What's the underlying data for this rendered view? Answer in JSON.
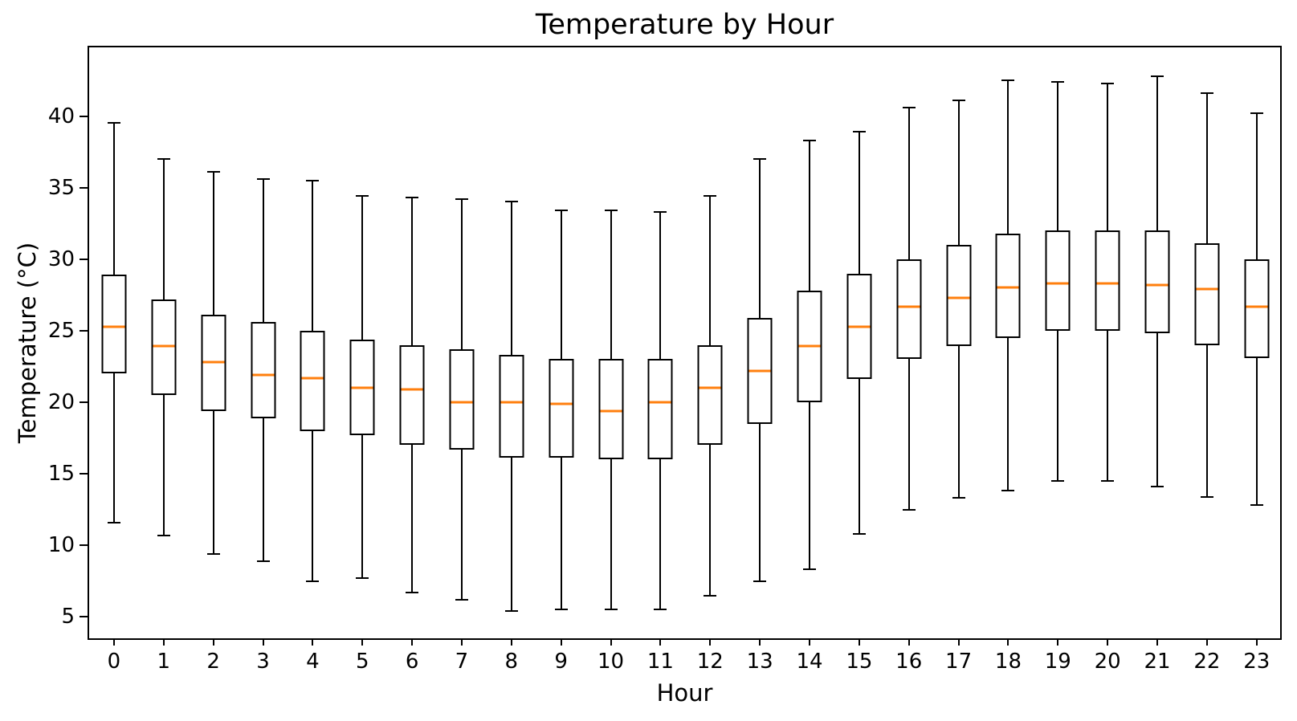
{
  "chart_data": {
    "type": "boxplot",
    "title": "Temperature by Hour",
    "xlabel": "Hour",
    "ylabel": "Temperature (°C)",
    "categories": [
      "0",
      "1",
      "2",
      "3",
      "4",
      "5",
      "6",
      "7",
      "8",
      "9",
      "10",
      "11",
      "12",
      "13",
      "14",
      "15",
      "16",
      "17",
      "18",
      "19",
      "20",
      "21",
      "22",
      "23"
    ],
    "yticks": [
      5,
      10,
      15,
      20,
      25,
      30,
      35,
      40
    ],
    "ylim": [
      3.5,
      44.8
    ],
    "grid": false,
    "legend": "none",
    "box_fill_color": "#ffffff",
    "line_color": "#000000",
    "median_color": "#ff7f0e",
    "series": [
      {
        "name": "Temperature",
        "boxes": [
          {
            "hour": "0",
            "whisker_low": 11.6,
            "q1": 22.0,
            "median": 25.3,
            "q3": 28.9,
            "whisker_high": 39.5
          },
          {
            "hour": "1",
            "whisker_low": 10.7,
            "q1": 20.5,
            "median": 23.9,
            "q3": 27.2,
            "whisker_high": 37.0
          },
          {
            "hour": "2",
            "whisker_low": 9.4,
            "q1": 19.4,
            "median": 22.8,
            "q3": 26.1,
            "whisker_high": 36.1
          },
          {
            "hour": "3",
            "whisker_low": 8.9,
            "q1": 18.9,
            "median": 21.9,
            "q3": 25.6,
            "whisker_high": 35.6
          },
          {
            "hour": "4",
            "whisker_low": 7.5,
            "q1": 18.0,
            "median": 21.7,
            "q3": 25.0,
            "whisker_high": 35.5
          },
          {
            "hour": "5",
            "whisker_low": 7.7,
            "q1": 17.7,
            "median": 21.0,
            "q3": 24.4,
            "whisker_high": 34.4
          },
          {
            "hour": "6",
            "whisker_low": 6.7,
            "q1": 17.0,
            "median": 20.9,
            "q3": 24.0,
            "whisker_high": 34.3
          },
          {
            "hour": "7",
            "whisker_low": 6.2,
            "q1": 16.7,
            "median": 20.0,
            "q3": 23.7,
            "whisker_high": 34.2
          },
          {
            "hour": "8",
            "whisker_low": 5.4,
            "q1": 16.1,
            "median": 20.0,
            "q3": 23.3,
            "whisker_high": 34.0
          },
          {
            "hour": "9",
            "whisker_low": 5.5,
            "q1": 16.1,
            "median": 19.9,
            "q3": 23.0,
            "whisker_high": 33.4
          },
          {
            "hour": "10",
            "whisker_low": 5.5,
            "q1": 16.0,
            "median": 19.4,
            "q3": 23.0,
            "whisker_high": 33.4
          },
          {
            "hour": "11",
            "whisker_low": 5.5,
            "q1": 16.0,
            "median": 20.0,
            "q3": 23.0,
            "whisker_high": 33.3
          },
          {
            "hour": "12",
            "whisker_low": 6.5,
            "q1": 17.0,
            "median": 21.0,
            "q3": 24.0,
            "whisker_high": 34.4
          },
          {
            "hour": "13",
            "whisker_low": 7.5,
            "q1": 18.5,
            "median": 22.2,
            "q3": 25.9,
            "whisker_high": 37.0
          },
          {
            "hour": "14",
            "whisker_low": 8.3,
            "q1": 20.0,
            "median": 23.9,
            "q3": 27.8,
            "whisker_high": 38.3
          },
          {
            "hour": "15",
            "whisker_low": 10.8,
            "q1": 21.6,
            "median": 25.3,
            "q3": 29.0,
            "whisker_high": 38.9
          },
          {
            "hour": "16",
            "whisker_low": 12.5,
            "q1": 23.0,
            "median": 26.7,
            "q3": 30.0,
            "whisker_high": 40.6
          },
          {
            "hour": "17",
            "whisker_low": 13.3,
            "q1": 23.9,
            "median": 27.3,
            "q3": 31.0,
            "whisker_high": 41.1
          },
          {
            "hour": "18",
            "whisker_low": 13.8,
            "q1": 24.5,
            "median": 28.0,
            "q3": 31.8,
            "whisker_high": 42.5
          },
          {
            "hour": "19",
            "whisker_low": 14.5,
            "q1": 25.0,
            "median": 28.3,
            "q3": 32.0,
            "whisker_high": 42.4
          },
          {
            "hour": "20",
            "whisker_low": 14.5,
            "q1": 25.0,
            "median": 28.3,
            "q3": 32.0,
            "whisker_high": 42.3
          },
          {
            "hour": "21",
            "whisker_low": 14.1,
            "q1": 24.8,
            "median": 28.2,
            "q3": 32.0,
            "whisker_high": 42.8
          },
          {
            "hour": "22",
            "whisker_low": 13.4,
            "q1": 24.0,
            "median": 27.9,
            "q3": 31.1,
            "whisker_high": 41.6
          },
          {
            "hour": "23",
            "whisker_low": 12.8,
            "q1": 23.1,
            "median": 26.7,
            "q3": 30.0,
            "whisker_high": 40.2
          }
        ]
      }
    ]
  }
}
